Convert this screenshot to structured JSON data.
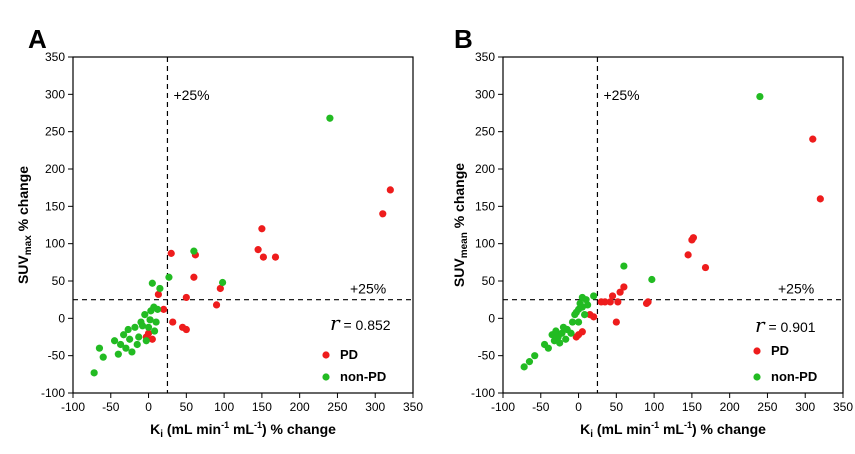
{
  "chart_data": [
    {
      "type": "scatter",
      "panel_label": "A",
      "ylabel_main": "SUV",
      "ylabel_sub": "max",
      "ylabel_rest": " % change",
      "xlabel_main": "K",
      "xlabel_sub": "i",
      "xlabel_a": " (mL min",
      "xlabel_sup1": "-1",
      "xlabel_b": " mL",
      "xlabel_sup2": "-1",
      "xlabel_c": ") % change",
      "xlim": [
        -100,
        350
      ],
      "ylim": [
        -100,
        350
      ],
      "x_ticks": [
        -100,
        -50,
        0,
        50,
        100,
        150,
        200,
        250,
        300,
        350
      ],
      "y_ticks": [
        -100,
        -50,
        0,
        50,
        100,
        150,
        200,
        250,
        300,
        350
      ],
      "x_tick_labels": [
        "-100",
        "-50",
        "0",
        "50",
        "100",
        "150",
        "200",
        "250",
        "300",
        "350"
      ],
      "y_tick_labels": [
        "-100",
        "-50",
        "0",
        "50",
        "100",
        "150",
        "200",
        "250",
        "300",
        "350"
      ],
      "threshold_x": 25,
      "threshold_y": 25,
      "threshold_x_label": "+25%",
      "threshold_y_label": "+25%",
      "r_label": "r",
      "r_value": " = 0.852",
      "grid": false,
      "legend_position": "bottom-right",
      "series": [
        {
          "name": "PD",
          "color": "#ee1c1c",
          "points": [
            [
              -3,
              -25
            ],
            [
              0,
              -20
            ],
            [
              5,
              -28
            ],
            [
              13,
              32
            ],
            [
              20,
              12
            ],
            [
              30,
              87
            ],
            [
              32,
              -5
            ],
            [
              45,
              -12
            ],
            [
              50,
              -15
            ],
            [
              50,
              28
            ],
            [
              60,
              55
            ],
            [
              62,
              85
            ],
            [
              90,
              18
            ],
            [
              95,
              40
            ],
            [
              145,
              92
            ],
            [
              150,
              120
            ],
            [
              152,
              82
            ],
            [
              168,
              82
            ],
            [
              310,
              140
            ],
            [
              320,
              172
            ]
          ]
        },
        {
          "name": "non-PD",
          "color": "#22bb22",
          "points": [
            [
              -72,
              -73
            ],
            [
              -65,
              -40
            ],
            [
              -60,
              -52
            ],
            [
              -45,
              -30
            ],
            [
              -40,
              -48
            ],
            [
              -37,
              -35
            ],
            [
              -33,
              -22
            ],
            [
              -30,
              -40
            ],
            [
              -27,
              -15
            ],
            [
              -25,
              -28
            ],
            [
              -22,
              -45
            ],
            [
              -18,
              -12
            ],
            [
              -15,
              -35
            ],
            [
              -13,
              -25
            ],
            [
              -10,
              -5
            ],
            [
              -8,
              -10
            ],
            [
              -5,
              5
            ],
            [
              -3,
              -30
            ],
            [
              0,
              -12
            ],
            [
              2,
              -2
            ],
            [
              3,
              10
            ],
            [
              5,
              47
            ],
            [
              7,
              15
            ],
            [
              8,
              -17
            ],
            [
              10,
              -5
            ],
            [
              12,
              12
            ],
            [
              15,
              40
            ],
            [
              27,
              55
            ],
            [
              60,
              90
            ],
            [
              98,
              48
            ],
            [
              240,
              268
            ]
          ]
        }
      ]
    },
    {
      "type": "scatter",
      "panel_label": "B",
      "ylabel_main": "SUV",
      "ylabel_sub": "mean",
      "ylabel_rest": " % change",
      "xlabel_main": "K",
      "xlabel_sub": "i",
      "xlabel_a": " (mL min",
      "xlabel_sup1": "-1",
      "xlabel_b": " mL",
      "xlabel_sup2": "-1",
      "xlabel_c": ") % change",
      "xlim": [
        -100,
        350
      ],
      "ylim": [
        -100,
        350
      ],
      "x_ticks": [
        -100,
        -50,
        0,
        50,
        100,
        150,
        200,
        250,
        300,
        350
      ],
      "y_ticks": [
        -100,
        -50,
        0,
        50,
        100,
        150,
        200,
        250,
        300,
        350
      ],
      "x_tick_labels": [
        "-100",
        "-50",
        "0",
        "50",
        "100",
        "150",
        "200",
        "250",
        "300",
        "350"
      ],
      "y_tick_labels": [
        "-100",
        "-50",
        "0",
        "50",
        "100",
        "150",
        "200",
        "250",
        "300",
        "350"
      ],
      "threshold_x": 25,
      "threshold_y": 25,
      "threshold_x_label": "+25%",
      "threshold_y_label": "+25%",
      "r_label": "r",
      "r_value": " = 0.901",
      "grid": false,
      "legend_position": "bottom-right",
      "series": [
        {
          "name": "PD",
          "color": "#ee1c1c",
          "points": [
            [
              -3,
              -25
            ],
            [
              0,
              -22
            ],
            [
              5,
              -18
            ],
            [
              15,
              5
            ],
            [
              20,
              2
            ],
            [
              30,
              22
            ],
            [
              35,
              22
            ],
            [
              42,
              22
            ],
            [
              45,
              30
            ],
            [
              50,
              -5
            ],
            [
              52,
              22
            ],
            [
              55,
              35
            ],
            [
              60,
              42
            ],
            [
              90,
              20
            ],
            [
              92,
              22
            ],
            [
              145,
              85
            ],
            [
              150,
              105
            ],
            [
              152,
              108
            ],
            [
              168,
              68
            ],
            [
              310,
              240
            ],
            [
              320,
              160
            ]
          ]
        },
        {
          "name": "non-PD",
          "color": "#22bb22",
          "points": [
            [
              -72,
              -65
            ],
            [
              -65,
              -58
            ],
            [
              -58,
              -50
            ],
            [
              -45,
              -35
            ],
            [
              -40,
              -40
            ],
            [
              -35,
              -22
            ],
            [
              -32,
              -30
            ],
            [
              -30,
              -17
            ],
            [
              -27,
              -25
            ],
            [
              -25,
              -33
            ],
            [
              -22,
              -20
            ],
            [
              -20,
              -12
            ],
            [
              -17,
              -28
            ],
            [
              -15,
              -15
            ],
            [
              -10,
              -20
            ],
            [
              -8,
              -5
            ],
            [
              -5,
              5
            ],
            [
              -3,
              8
            ],
            [
              0,
              12
            ],
            [
              0,
              -5
            ],
            [
              2,
              20
            ],
            [
              5,
              15
            ],
            [
              5,
              28
            ],
            [
              8,
              5
            ],
            [
              10,
              25
            ],
            [
              12,
              18
            ],
            [
              20,
              30
            ],
            [
              60,
              70
            ],
            [
              97,
              52
            ],
            [
              240,
              297
            ]
          ]
        }
      ]
    }
  ]
}
